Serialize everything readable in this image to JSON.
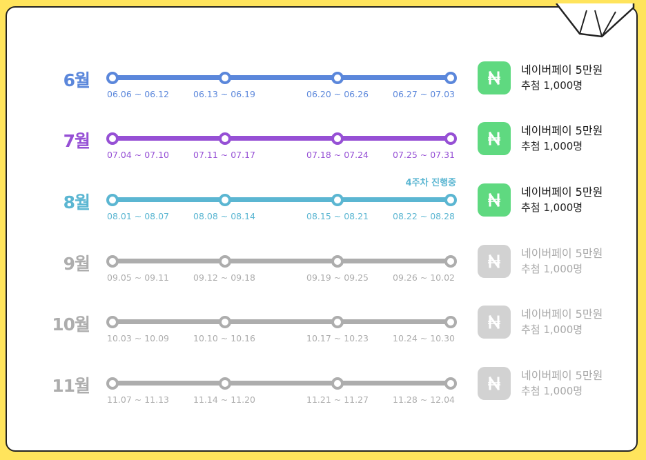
{
  "colors": {
    "background": "#FFE45C",
    "june": "#5B87DB",
    "july": "#9650D5",
    "august": "#5BB6D2",
    "inactive": "#ADADAD",
    "naver_green": "#5FD980",
    "naver_gray": "#D2D2D2"
  },
  "months": [
    {
      "label": "6월",
      "color": "#5B87DB",
      "active": true,
      "status": "",
      "weeks": [
        "06.06 ~ 06.12",
        "06.13 ~ 06.19",
        "06.20 ~ 06.26",
        "06.27 ~ 07.03"
      ],
      "prize": {
        "title": "네이버페이 5만원",
        "winners": "추첨 1,000명",
        "icon": "naver-pay-icon"
      }
    },
    {
      "label": "7월",
      "color": "#9650D5",
      "active": true,
      "status": "",
      "weeks": [
        "07.04 ~ 07.10",
        "07.11 ~ 07.17",
        "07.18 ~ 07.24",
        "07.25 ~ 07.31"
      ],
      "prize": {
        "title": "네이버페이 5만원",
        "winners": "추첨 1,000명",
        "icon": "naver-pay-icon"
      }
    },
    {
      "label": "8월",
      "color": "#5BB6D2",
      "active": true,
      "status": "4주차 진행중",
      "weeks": [
        "08.01 ~ 08.07",
        "08.08 ~ 08.14",
        "08.15 ~ 08.21",
        "08.22 ~ 08.28"
      ],
      "prize": {
        "title": "네이버페이 5만원",
        "winners": "추첨 1,000명",
        "icon": "naver-pay-icon"
      }
    },
    {
      "label": "9월",
      "color": "#ADADAD",
      "active": false,
      "status": "",
      "weeks": [
        "09.05 ~ 09.11",
        "09.12 ~ 09.18",
        "09.19 ~ 09.25",
        "09.26 ~ 10.02"
      ],
      "prize": {
        "title": "네이버페이 5만원",
        "winners": "추첨 1,000명",
        "icon": "naver-pay-icon"
      }
    },
    {
      "label": "10월",
      "color": "#ADADAD",
      "active": false,
      "status": "",
      "weeks": [
        "10.03 ~ 10.09",
        "10.10 ~ 10.16",
        "10.17 ~ 10.23",
        "10.24 ~ 10.30"
      ],
      "prize": {
        "title": "네이버페이 5만원",
        "winners": "추첨 1,000명",
        "icon": "naver-pay-icon"
      }
    },
    {
      "label": "11월",
      "color": "#ADADAD",
      "active": false,
      "status": "",
      "weeks": [
        "11.07 ~ 11.13",
        "11.14 ~ 11.20",
        "11.21 ~ 11.27",
        "11.28 ~ 12.04"
      ],
      "prize": {
        "title": "네이버페이 5만원",
        "winners": "추첨 1,000명",
        "icon": "naver-pay-icon"
      }
    }
  ]
}
